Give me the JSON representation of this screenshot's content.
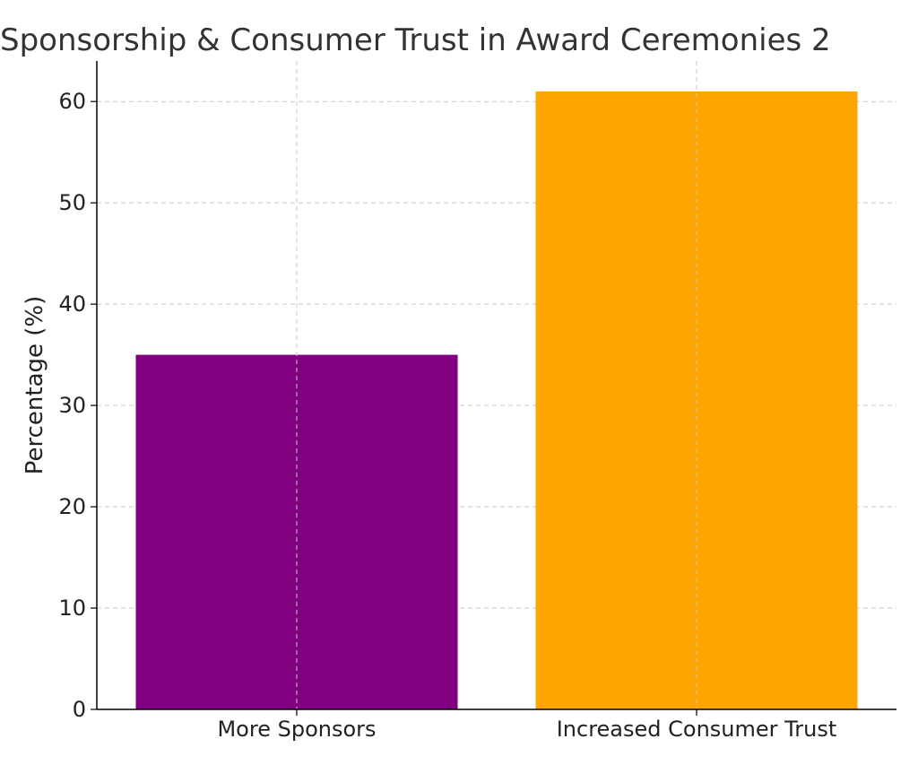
{
  "chart_data": {
    "type": "bar",
    "title": "Sponsorship & Consumer Trust in Award Ceremonies 2",
    "xlabel": "",
    "ylabel": "Percentage (%)",
    "categories": [
      "More Sponsors",
      "Increased Consumer Trust"
    ],
    "values": [
      35,
      61
    ],
    "colors": [
      "#800080",
      "#FFA500"
    ],
    "ylim": [
      0,
      64
    ],
    "yticks": [
      0,
      10,
      20,
      30,
      40,
      50,
      60
    ],
    "grid": true
  }
}
